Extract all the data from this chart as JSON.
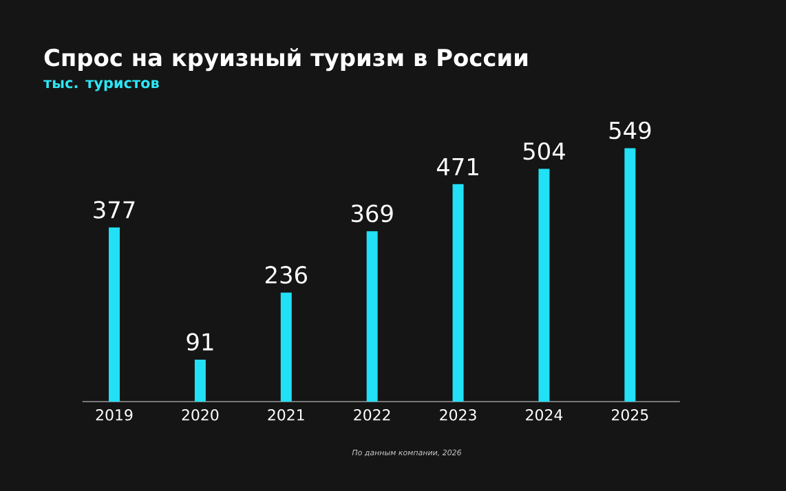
{
  "chart_data": {
    "type": "bar",
    "title": "Спрос на круизный туризм в России",
    "subtitle": "тыс. туристов",
    "categories": [
      "2019",
      "2020",
      "2021",
      "2022",
      "2023",
      "2024",
      "2025"
    ],
    "values": [
      377,
      91,
      236,
      369,
      471,
      504,
      549
    ],
    "color": "#22e0f5",
    "data_labels": true,
    "annotations": [
      "По данным компании, 2026"
    ]
  }
}
